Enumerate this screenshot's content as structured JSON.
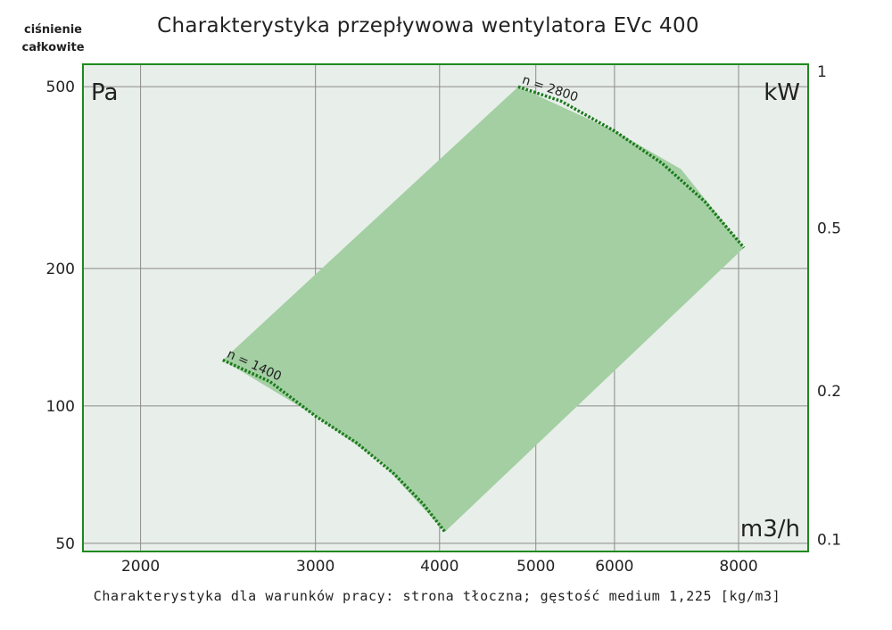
{
  "header": {
    "title": "Charakterystyka przepływowa wentylatora EVc 400",
    "ylabel_line1": "ciśnienie",
    "ylabel_line2": "całkowite"
  },
  "footer": {
    "note": "Charakterystyka dla warunków pracy: strona tłoczna; gęstość medium 1,225 [kg/m3]"
  },
  "colors": {
    "frame": "#1e8a1e",
    "plot_bg": "#e8eeea",
    "grid": "#8c8c8c",
    "area": "#a3cfa3",
    "curve": "#1a7a1a"
  },
  "chart_data": {
    "type": "area",
    "title": "Charakterystyka przepływowa wentylatora EVc 400",
    "xscale": "log",
    "yscale": "log",
    "xlim": [
      1750,
      9400
    ],
    "ylim": [
      48,
      560
    ],
    "x_ticks": [
      2000,
      3000,
      4000,
      5000,
      6000,
      8000
    ],
    "x_tick_labels": [
      "2000",
      "3000",
      "4000",
      "5000",
      "6000",
      "8000"
    ],
    "y_ticks": [
      50,
      100,
      200,
      500
    ],
    "y_tick_labels": [
      "50",
      "100",
      "200",
      "500"
    ],
    "y2_tick_labels": [
      "0.1",
      "0.2",
      "0.5",
      "1"
    ],
    "y2_ticks_pa": [
      51,
      108,
      245,
      540
    ],
    "grid": true,
    "unit_y": "Pa",
    "unit_y2": "kW",
    "unit_x": "m3/h",
    "region": {
      "name": "operating range",
      "points": [
        [
          2420,
          126
        ],
        [
          3000,
          95
        ],
        [
          3500,
          75
        ],
        [
          4050,
          53
        ],
        [
          8100,
          222
        ],
        [
          7000,
          330
        ],
        [
          6000,
          400
        ],
        [
          4800,
          500
        ]
      ]
    },
    "series": [
      {
        "name": "n = 1400",
        "x": [
          2420,
          2700,
          3000,
          3300,
          3600,
          3850,
          4050
        ],
        "y": [
          126,
          113,
          95,
          83,
          71,
          61,
          53
        ]
      },
      {
        "name": "n = 2800",
        "x": [
          4800,
          5300,
          6000,
          6700,
          7400,
          8100
        ],
        "y": [
          500,
          465,
          400,
          340,
          280,
          222
        ]
      }
    ]
  }
}
